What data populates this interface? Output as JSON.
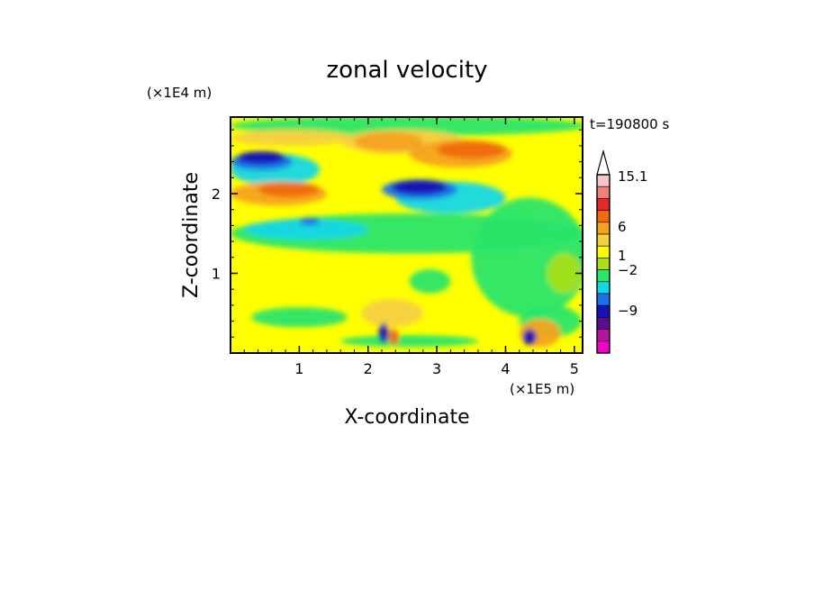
{
  "chart_data": {
    "type": "heatmap",
    "title": "zonal velocity",
    "xlabel": "X-coordinate",
    "ylabel": "Z-coordinate",
    "x_unit": "(×1E5 m)",
    "y_unit": "(×1E4 m)",
    "time_label": "t=190800 s",
    "x_ticks": [
      "1",
      "2",
      "3",
      "4",
      "5"
    ],
    "y_ticks": [
      "1",
      "2"
    ],
    "xlim": [
      0,
      5.12
    ],
    "ylim": [
      0,
      2.96
    ],
    "colorbar": {
      "labels": [
        "15.1",
        "6",
        "1",
        "−2",
        "−9"
      ],
      "colors": [
        "#ffffff",
        "#f7c6cc",
        "#f08080",
        "#e8262a",
        "#f06a10",
        "#f5a31f",
        "#f5d040",
        "#ffff00",
        "#a8e01a",
        "#2ce56a",
        "#14d7e7",
        "#1a72e8",
        "#1414b4",
        "#5a0d90",
        "#b4159a",
        "#f000c8"
      ]
    },
    "field_bands": [
      {
        "z": 2.6,
        "u": 10,
        "note": "strong positive layer"
      },
      {
        "z": 2.45,
        "u": -12,
        "note": "negative core near x=0.5"
      },
      {
        "z": 2.1,
        "u": -11,
        "note": "negative core near x=2.7"
      },
      {
        "z": 1.6,
        "u": -2
      },
      {
        "z": 0.8,
        "u": 1
      },
      {
        "z": 0.2,
        "u": 2
      }
    ]
  }
}
